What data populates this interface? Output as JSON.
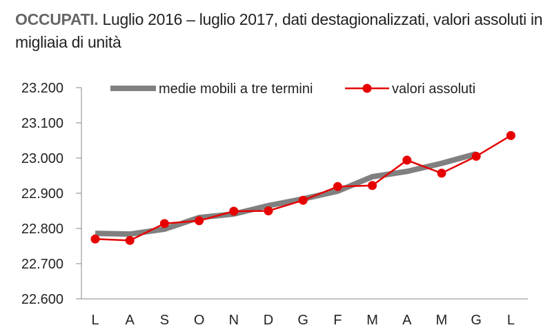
{
  "title": {
    "bold": "OCCUPATI.",
    "rest": "Luglio 2016 – luglio 2017, dati destagionalizzati, valori assoluti in migliaia di unità"
  },
  "chart_data": {
    "type": "line",
    "categories": [
      "L",
      "A",
      "S",
      "O",
      "N",
      "D",
      "G",
      "F",
      "M",
      "A",
      "M",
      "G",
      "L"
    ],
    "ylim": [
      22600,
      23200
    ],
    "yticks": [
      22600,
      22700,
      22800,
      22900,
      23000,
      23100,
      23200
    ],
    "ytick_labels": [
      "22.600",
      "22.700",
      "22.800",
      "22.900",
      "23.000",
      "23.100",
      "23.200"
    ],
    "grid": false,
    "legend_position": "top",
    "series": [
      {
        "name": "medie mobili a tre termini",
        "color": "#808080",
        "values": [
          22786,
          22784,
          22798,
          22831,
          22841,
          22865,
          22884,
          22906,
          22947,
          22962,
          22985,
          23012,
          null
        ]
      },
      {
        "name": "valori assoluti",
        "color": "#e60000",
        "values": [
          22770,
          22766,
          22814,
          22822,
          22849,
          22850,
          22880,
          22919,
          22922,
          22994,
          22957,
          23005,
          23064
        ]
      }
    ]
  }
}
